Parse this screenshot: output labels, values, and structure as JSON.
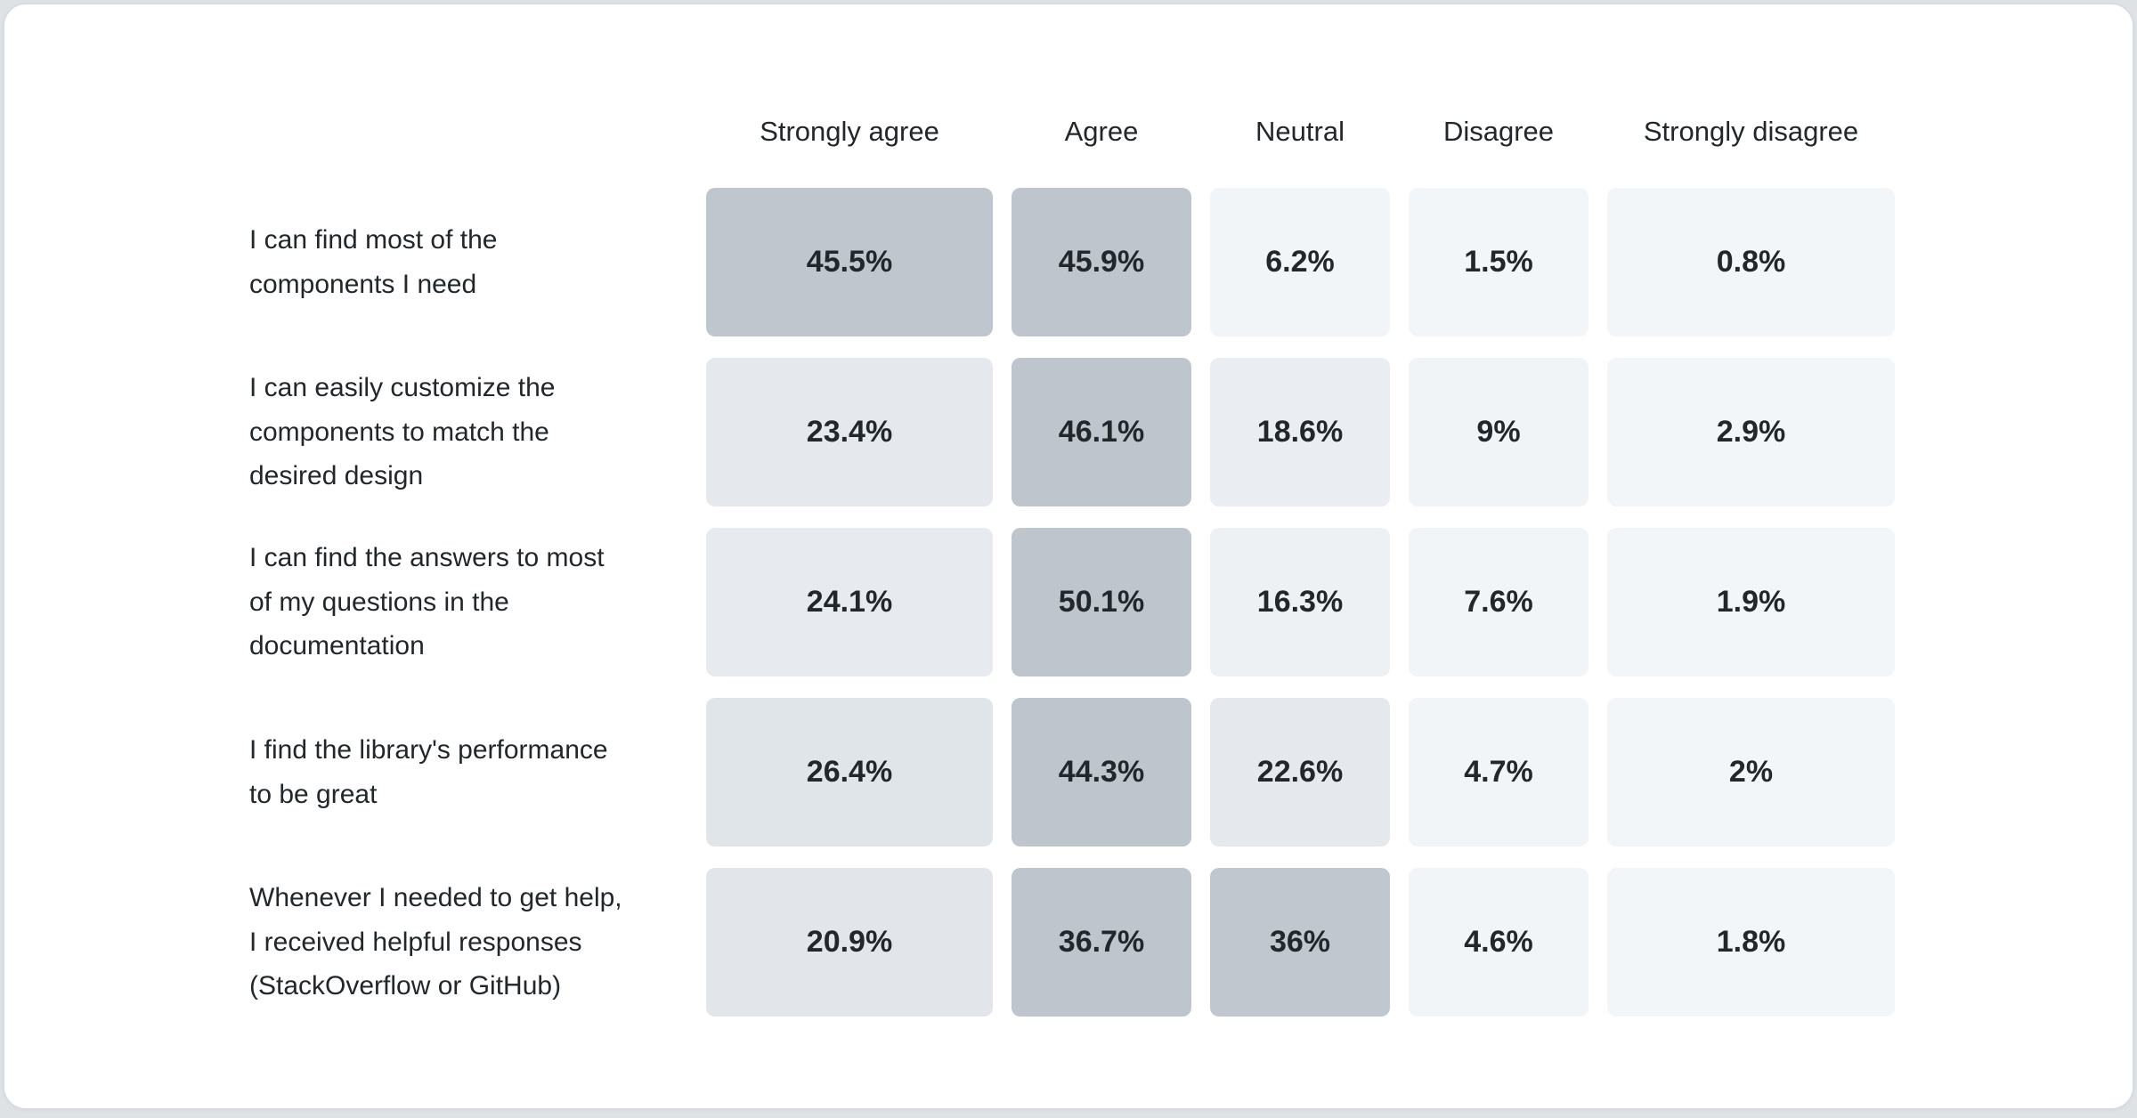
{
  "chart_data": {
    "type": "heatmap",
    "title": "",
    "value_unit": "%",
    "columns": [
      "Strongly agree",
      "Agree",
      "Neutral",
      "Disagree",
      "Strongly disagree"
    ],
    "rows": [
      {
        "label": "I can find most of the\ncomponents I need",
        "values": [
          45.5,
          45.9,
          6.2,
          1.5,
          0.8
        ],
        "display": [
          "45.5%",
          "45.9%",
          "6.2%",
          "1.5%",
          "0.8%"
        ],
        "cell_colors": [
          "#bfc6ce",
          "#bec5cd",
          "#f2f5f8",
          "#f3f6f9",
          "#f3f6f9"
        ]
      },
      {
        "label": "I can easily customize the\ncomponents to match the\ndesired design",
        "values": [
          23.4,
          46.1,
          18.6,
          9,
          2.9
        ],
        "display": [
          "23.4%",
          "46.1%",
          "18.6%",
          "9%",
          "2.9%"
        ],
        "cell_colors": [
          "#e5e9ee",
          "#bec5cd",
          "#eaeef2",
          "#f1f4f7",
          "#f3f6f9"
        ]
      },
      {
        "label": "I can find the answers to most\nof my questions in the\ndocumentation",
        "values": [
          24.1,
          50.1,
          16.3,
          7.6,
          1.9
        ],
        "display": [
          "24.1%",
          "50.1%",
          "16.3%",
          "7.6%",
          "1.9%"
        ],
        "cell_colors": [
          "#e7ebef",
          "#bec5cd",
          "#edf1f4",
          "#f2f5f8",
          "#f3f6f9"
        ]
      },
      {
        "label": "I find the library's performance\nto be great",
        "values": [
          26.4,
          44.3,
          22.6,
          4.7,
          2
        ],
        "display": [
          "26.4%",
          "44.3%",
          "22.6%",
          "4.7%",
          "2%"
        ],
        "cell_colors": [
          "#e0e5e9",
          "#bec5cd",
          "#e5e9ee",
          "#f2f5f8",
          "#f3f6f9"
        ]
      },
      {
        "label": "Whenever I needed to get help,\nI received helpful responses\n(StackOverflow or GitHub)",
        "values": [
          20.9,
          36.7,
          36,
          4.6,
          1.8
        ],
        "display": [
          "20.9%",
          "36.7%",
          "36%",
          "4.6%",
          "1.8%"
        ],
        "cell_colors": [
          "#e2e6eb",
          "#bec5cd",
          "#c0c7cf",
          "#f2f5f8",
          "#f3f6f9"
        ]
      }
    ],
    "color_scale": {
      "min_color": "#f3f6f9",
      "max_color": "#bec5cd",
      "normalization": "row-max, squared easing"
    },
    "text_color": "#21272a",
    "card_background": "#ffffff",
    "card_border_color": "#d8dce0",
    "page_background": "#dfe2e5",
    "legend_position": "none",
    "grid_lines": "off"
  }
}
